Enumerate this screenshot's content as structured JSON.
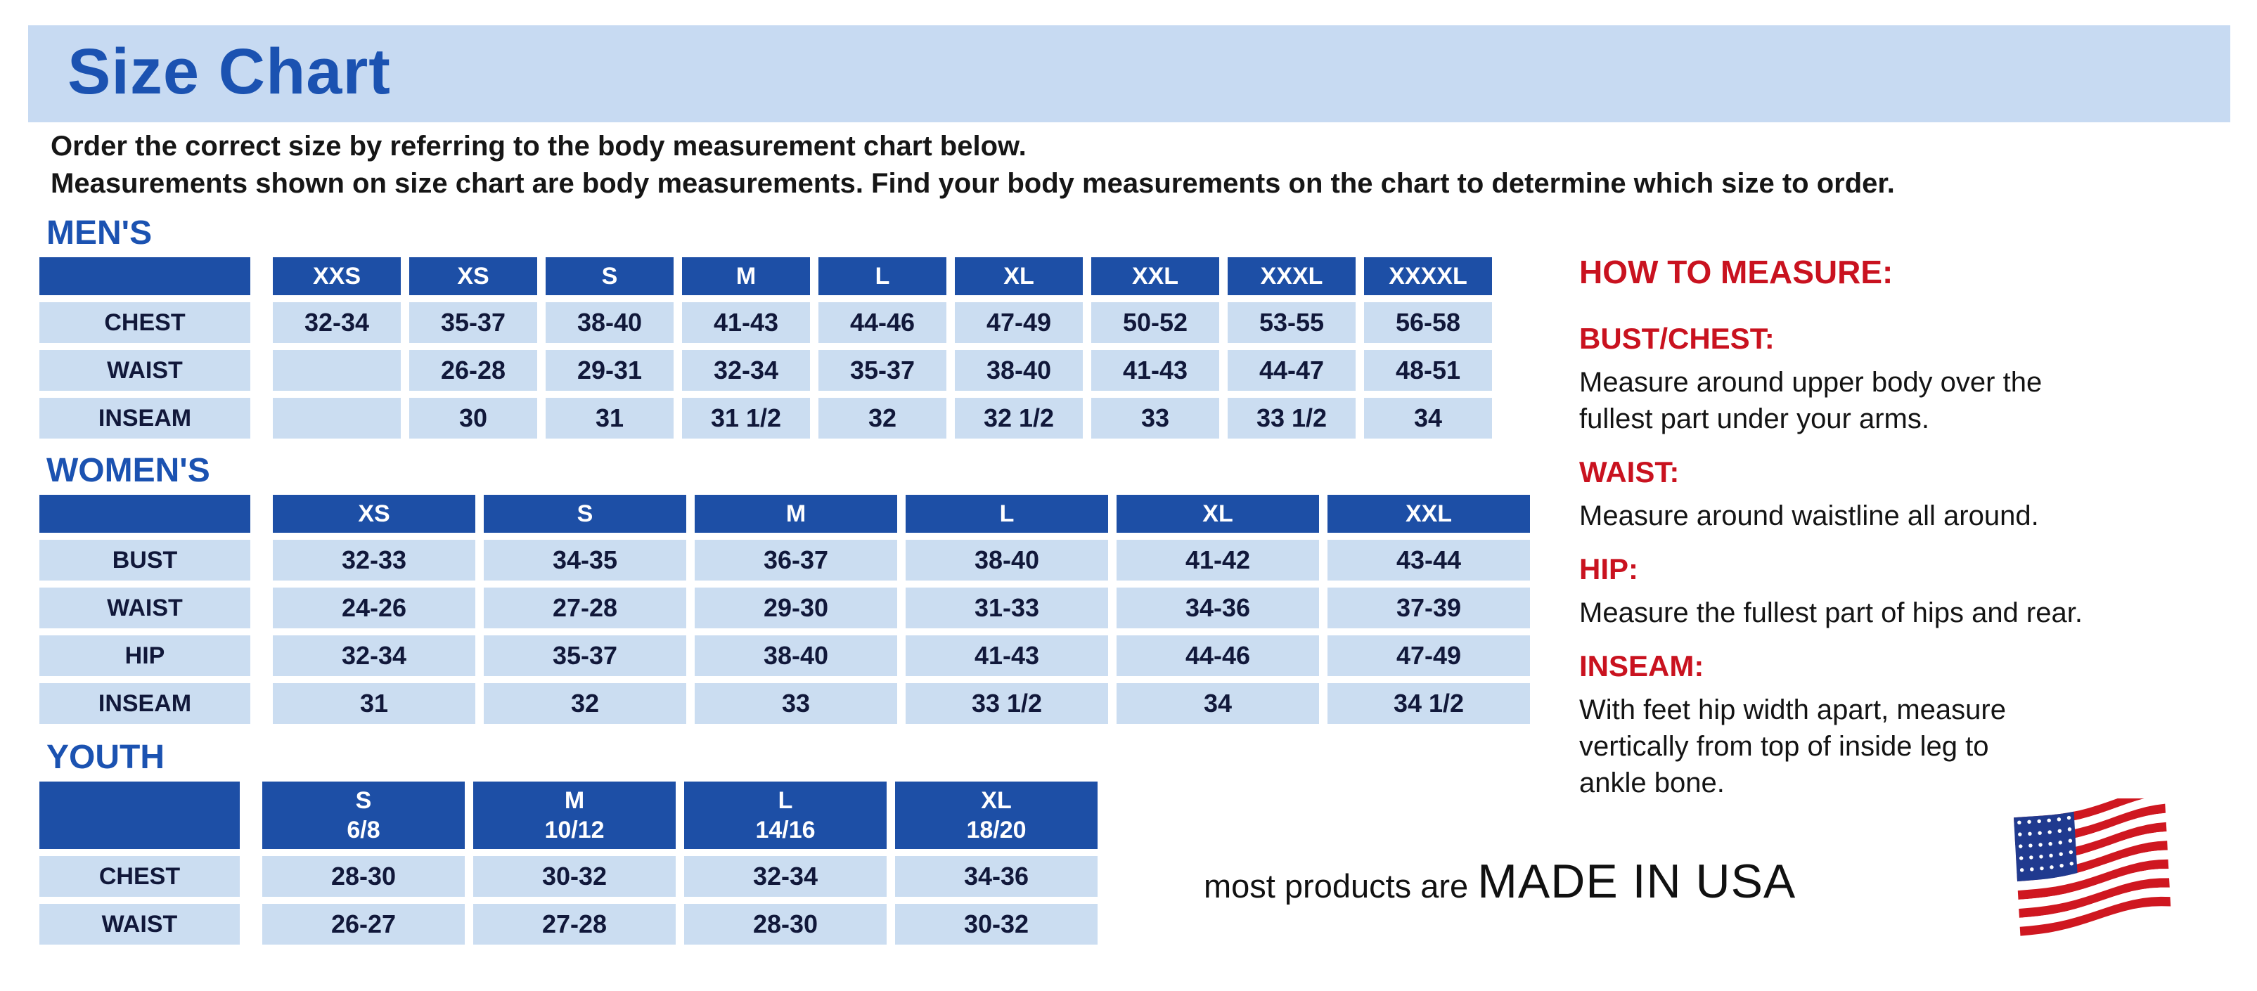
{
  "banner": {
    "title": "Size Chart"
  },
  "intro": {
    "line1": "Order the correct size by referring to the body measurement chart below.",
    "line2": "Measurements shown on size chart are body measurements.  Find your body measurements on the chart to determine which size to order."
  },
  "tables": {
    "mens": {
      "heading": "MEN'S",
      "columns": [
        "XXS",
        "XS",
        "S",
        "M",
        "L",
        "XL",
        "XXL",
        "XXXL",
        "XXXXL"
      ],
      "rows": [
        {
          "label": "CHEST",
          "values": [
            "32-34",
            "35-37",
            "38-40",
            "41-43",
            "44-46",
            "47-49",
            "50-52",
            "53-55",
            "56-58"
          ]
        },
        {
          "label": "WAIST",
          "values": [
            "",
            "26-28",
            "29-31",
            "32-34",
            "35-37",
            "38-40",
            "41-43",
            "44-47",
            "48-51"
          ]
        },
        {
          "label": "INSEAM",
          "values": [
            "",
            "30",
            "31",
            "31 1/2",
            "32",
            "32 1/2",
            "33",
            "33 1/2",
            "34"
          ]
        }
      ]
    },
    "womens": {
      "heading": "WOMEN'S",
      "columns": [
        "XS",
        "S",
        "M",
        "L",
        "XL",
        "XXL"
      ],
      "rows": [
        {
          "label": "BUST",
          "values": [
            "32-33",
            "34-35",
            "36-37",
            "38-40",
            "41-42",
            "43-44"
          ]
        },
        {
          "label": "WAIST",
          "values": [
            "24-26",
            "27-28",
            "29-30",
            "31-33",
            "34-36",
            "37-39"
          ]
        },
        {
          "label": "HIP",
          "values": [
            "32-34",
            "35-37",
            "38-40",
            "41-43",
            "44-46",
            "47-49"
          ]
        },
        {
          "label": "INSEAM",
          "values": [
            "31",
            "32",
            "33",
            "33 1/2",
            "34",
            "34 1/2"
          ]
        }
      ]
    },
    "youth": {
      "heading": "YOUTH",
      "columns": [
        "S\n6/8",
        "M\n10/12",
        "L\n14/16",
        "XL\n18/20"
      ],
      "rows": [
        {
          "label": "CHEST",
          "values": [
            "28-30",
            "30-32",
            "32-34",
            "34-36"
          ]
        },
        {
          "label": "WAIST",
          "values": [
            "26-27",
            "27-28",
            "28-30",
            "30-32"
          ]
        }
      ]
    }
  },
  "how_to_measure": {
    "heading": "HOW TO MEASURE:",
    "sections": [
      {
        "label": "BUST/CHEST:",
        "text": "Measure around upper body over the\nfullest part under your arms."
      },
      {
        "label": "WAIST:",
        "text": "Measure around waistline all around."
      },
      {
        "label": "HIP:",
        "text": "Measure the fullest part of hips and rear."
      },
      {
        "label": "INSEAM:",
        "text": "With feet hip width apart, measure\nvertically from top of inside leg to\nankle bone."
      }
    ]
  },
  "footer": {
    "prefix": "most products are ",
    "emphasis": "MADE IN USA",
    "flag_icon": "usa-flag-icon"
  },
  "colors": {
    "banner_bg": "#c7daf2",
    "heading_blue": "#1b52b1",
    "table_header_bg": "#1d4fa6",
    "table_cell_bg": "#cbddf1",
    "accent_red": "#c9121f",
    "flag_red": "#cf1720",
    "flag_blue": "#203a8f"
  }
}
